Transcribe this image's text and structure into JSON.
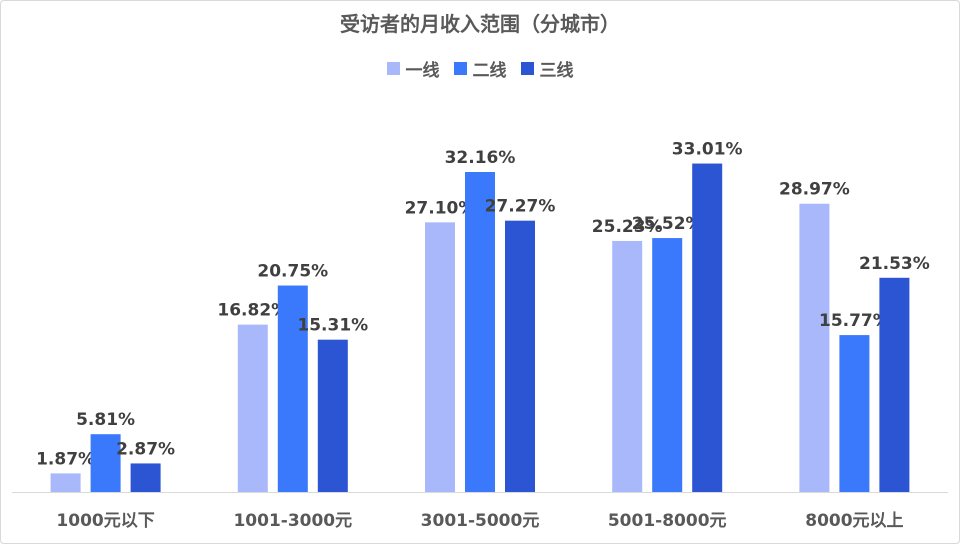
{
  "chart_data": {
    "type": "bar",
    "title": "受访者的月收入范围（分城市）",
    "categories": [
      "1000元以下",
      "1001-3000元",
      "3001-5000元",
      "5001-8000元",
      "8000元以上"
    ],
    "series": [
      {
        "name": "一线",
        "color": "#a9b8fb",
        "values": [
          1.87,
          16.82,
          27.1,
          25.23,
          28.97
        ],
        "labels": [
          "1.87%",
          "16.82%",
          "27.10%",
          "25.23%",
          "28.97%"
        ]
      },
      {
        "name": "二线",
        "color": "#3a79fb",
        "values": [
          5.81,
          20.75,
          32.16,
          25.52,
          15.77
        ],
        "labels": [
          "5.81%",
          "20.75%",
          "32.16%",
          "25.52%",
          "15.77%"
        ]
      },
      {
        "name": "三线",
        "color": "#2b55d3",
        "values": [
          2.87,
          15.31,
          27.27,
          33.01,
          21.53
        ],
        "labels": [
          "2.87%",
          "15.31%",
          "27.27%",
          "33.01%",
          "21.53%"
        ]
      }
    ],
    "ylim": [
      0,
      36
    ],
    "grid": false,
    "legend_position": "top",
    "data_labels": true
  }
}
